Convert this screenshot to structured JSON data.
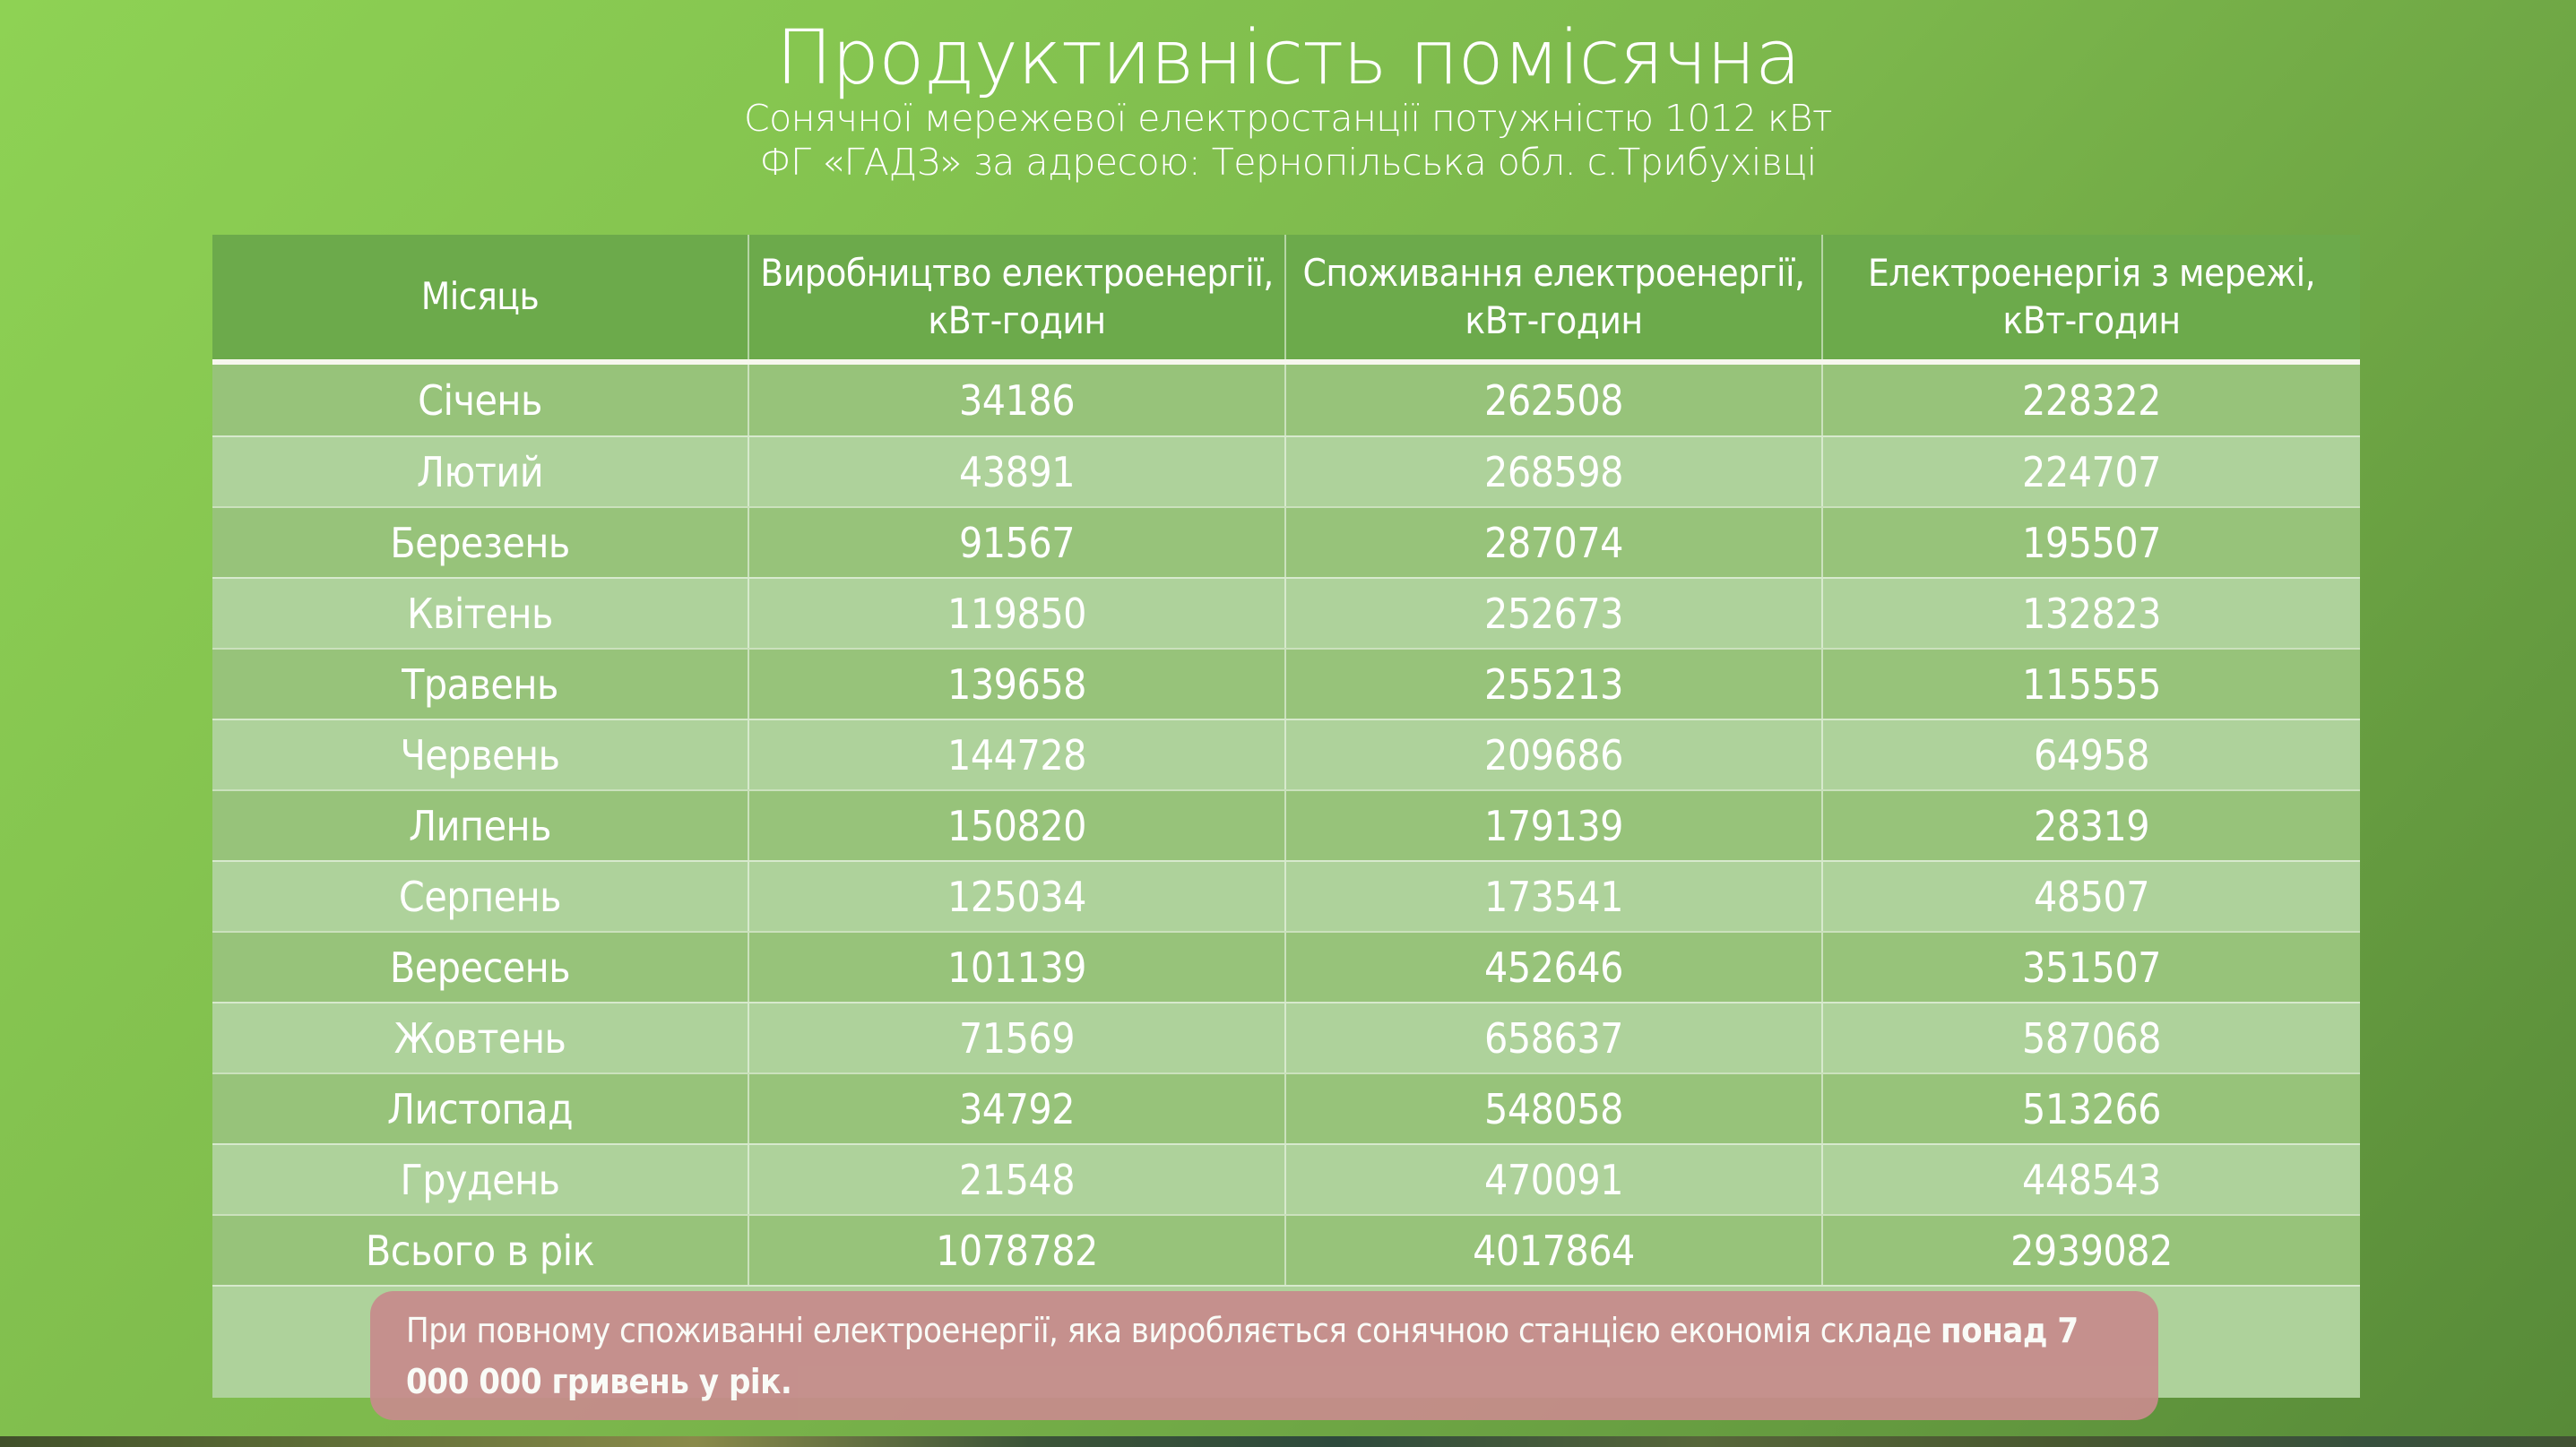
{
  "title": "Продуктивність помісячна",
  "subtitle_line1": "Сонячної мережевої електростанції потужністю 1012 кВт",
  "subtitle_line2": "ФГ «ГАДЗ» за адресою: Тернопільська обл. с.Трибухівці",
  "table": {
    "headers": [
      {
        "line1": "Місяць",
        "line2": ""
      },
      {
        "line1": "Виробництво електроенергії,",
        "line2": "кВт-годин"
      },
      {
        "line1": "Споживання електроенергії,",
        "line2": "кВт-годин"
      },
      {
        "line1": "Електроенергія з мережі,",
        "line2": "кВт-годин"
      }
    ],
    "rows": [
      {
        "month": "Січень",
        "production": "34186",
        "consumption": "262508",
        "from_grid": "228322"
      },
      {
        "month": "Лютий",
        "production": "43891",
        "consumption": "268598",
        "from_grid": "224707"
      },
      {
        "month": "Березень",
        "production": "91567",
        "consumption": "287074",
        "from_grid": "195507"
      },
      {
        "month": "Квітень",
        "production": "119850",
        "consumption": "252673",
        "from_grid": "132823"
      },
      {
        "month": "Травень",
        "production": "139658",
        "consumption": "255213",
        "from_grid": "115555"
      },
      {
        "month": "Червень",
        "production": "144728",
        "consumption": "209686",
        "from_grid": "64958"
      },
      {
        "month": "Липень",
        "production": "150820",
        "consumption": "179139",
        "from_grid": "28319"
      },
      {
        "month": "Серпень",
        "production": "125034",
        "consumption": "173541",
        "from_grid": "48507"
      },
      {
        "month": "Вересень",
        "production": "101139",
        "consumption": "452646",
        "from_grid": "351507"
      },
      {
        "month": "Жовтень",
        "production": "71569",
        "consumption": "658637",
        "from_grid": "587068"
      },
      {
        "month": "Листопад",
        "production": "34792",
        "consumption": "548058",
        "from_grid": "513266"
      },
      {
        "month": "Грудень",
        "production": "21548",
        "consumption": "470091",
        "from_grid": "448543"
      }
    ],
    "total": {
      "month": "Всього в рік",
      "production": "1078782",
      "consumption": "4017864",
      "from_grid": "2939082"
    }
  },
  "note": {
    "text_regular": "При повному споживанні електроенергії, яка виробляється сонячною станцією економія складе ",
    "text_bold": "понад 7 000 000 гривень у рік."
  },
  "colors": {
    "background_top": "#8ed254",
    "background_bottom": "#578a38",
    "header_green": "#6caa4b",
    "row_dark": "#97c37a",
    "row_light": "#aed29b",
    "note_pink": "#c78c8c",
    "text_white": "#ffffff",
    "separator": "#ffffff80"
  },
  "chart_data": {
    "type": "table",
    "title": "Продуктивність помісячна",
    "subtitle": "Сонячної мережевої електростанції потужністю 1012 кВт, ФГ «ГАДЗ», Тернопільська обл. с.Трибухівці",
    "columns": [
      "Місяць",
      "Виробництво електроенергії, кВт-годин",
      "Споживання електроенергії, кВт-годин",
      "Електроенергія з мережі, кВт-годин"
    ],
    "rows": [
      [
        "Січень",
        34186,
        262508,
        228322
      ],
      [
        "Лютий",
        43891,
        268598,
        224707
      ],
      [
        "Березень",
        91567,
        287074,
        195507
      ],
      [
        "Квітень",
        119850,
        252673,
        132823
      ],
      [
        "Травень",
        139658,
        255213,
        115555
      ],
      [
        "Червень",
        144728,
        209686,
        64958
      ],
      [
        "Липень",
        150820,
        179139,
        28319
      ],
      [
        "Серпень",
        125034,
        173541,
        48507
      ],
      [
        "Вересень",
        101139,
        452646,
        351507
      ],
      [
        "Жовтень",
        71569,
        658637,
        587068
      ],
      [
        "Листопад",
        34792,
        548058,
        513266
      ],
      [
        "Грудень",
        21548,
        470091,
        448543
      ],
      [
        "Всього в рік",
        1078782,
        4017864,
        2939082
      ]
    ],
    "annotation": "При повному споживанні електроенергії, яка виробляється сонячною станцією економія складе понад 7 000 000 гривень у рік."
  }
}
